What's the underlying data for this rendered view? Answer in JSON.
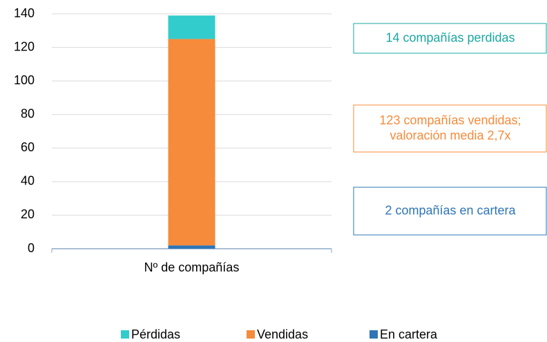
{
  "chart_data": {
    "type": "stacked_bar",
    "categories": [
      "Nº de compañías"
    ],
    "series": [
      {
        "name": "En cartera",
        "color": "#2e75b6",
        "values": [
          2
        ]
      },
      {
        "name": "Vendidas",
        "color": "#f58b3b",
        "values": [
          123
        ]
      },
      {
        "name": "Pérdidas",
        "color": "#33cccc",
        "values": [
          14
        ]
      }
    ],
    "ylim": [
      0,
      140
    ],
    "yticks": [
      0,
      20,
      40,
      60,
      80,
      100,
      120,
      140
    ],
    "grid": true,
    "annotations": [
      {
        "lines": [
          "14 compañías perdidas"
        ],
        "color": "#1aa7a0"
      },
      {
        "lines": [
          "123 compañías vendidas;",
          "valoración media 2,7x"
        ],
        "color": "#f58b3b"
      },
      {
        "lines": [
          "2 compañías en cartera"
        ],
        "color": "#2e75b6"
      }
    ]
  }
}
